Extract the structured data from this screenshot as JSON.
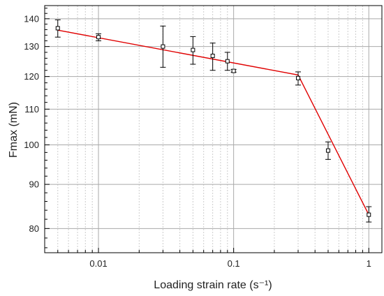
{
  "chart_data": {
    "type": "scatter",
    "title": "",
    "xlabel": "Loading strain rate (s⁻¹)",
    "ylabel": "Fmax (mN)",
    "x_scale": "log",
    "y_scale": "log",
    "xlim": [
      0.004,
      1.25
    ],
    "ylim": [
      75,
      145
    ],
    "grid": true,
    "x_ticks": [
      {
        "value": 0.01,
        "label": "0.01"
      },
      {
        "value": 0.1,
        "label": "0.1"
      },
      {
        "value": 1,
        "label": "1"
      }
    ],
    "y_ticks": [
      {
        "value": 80,
        "label": "80"
      },
      {
        "value": 90,
        "label": "90"
      },
      {
        "value": 100,
        "label": "100"
      },
      {
        "value": 110,
        "label": "110"
      },
      {
        "value": 120,
        "label": "120"
      },
      {
        "value": 130,
        "label": "130"
      },
      {
        "value": 140,
        "label": "140"
      }
    ],
    "points": [
      {
        "x": 0.005,
        "y": 136.5,
        "err_low": 133.3,
        "err_high": 139.6
      },
      {
        "x": 0.01,
        "y": 133.3,
        "err_low": 132.0,
        "err_high": 134.5
      },
      {
        "x": 0.03,
        "y": 130.0,
        "err_low": 123.0,
        "err_high": 137.3
      },
      {
        "x": 0.05,
        "y": 128.8,
        "err_low": 124.0,
        "err_high": 133.5
      },
      {
        "x": 0.07,
        "y": 126.8,
        "err_low": 122.0,
        "err_high": 131.2
      },
      {
        "x": 0.09,
        "y": 125.0,
        "err_low": 122.0,
        "err_high": 128.0
      },
      {
        "x": 0.1,
        "y": 121.8,
        "err_low": 121.4,
        "err_high": 122.3
      },
      {
        "x": 0.3,
        "y": 119.5,
        "err_low": 117.3,
        "err_high": 121.5
      },
      {
        "x": 0.5,
        "y": 98.5,
        "err_low": 96.2,
        "err_high": 100.8
      },
      {
        "x": 1.0,
        "y": 83.0,
        "err_low": 81.4,
        "err_high": 84.8
      }
    ],
    "fit_line": {
      "color": "#e00000",
      "points": [
        {
          "x": 0.005,
          "y": 135.8
        },
        {
          "x": 0.3,
          "y": 120.5
        },
        {
          "x": 1.0,
          "y": 83.0
        }
      ]
    },
    "colors": {
      "marker": "#000000",
      "grid_major": "#a9a9a9",
      "grid_minor": "#cccccc",
      "axis": "#000000"
    }
  }
}
